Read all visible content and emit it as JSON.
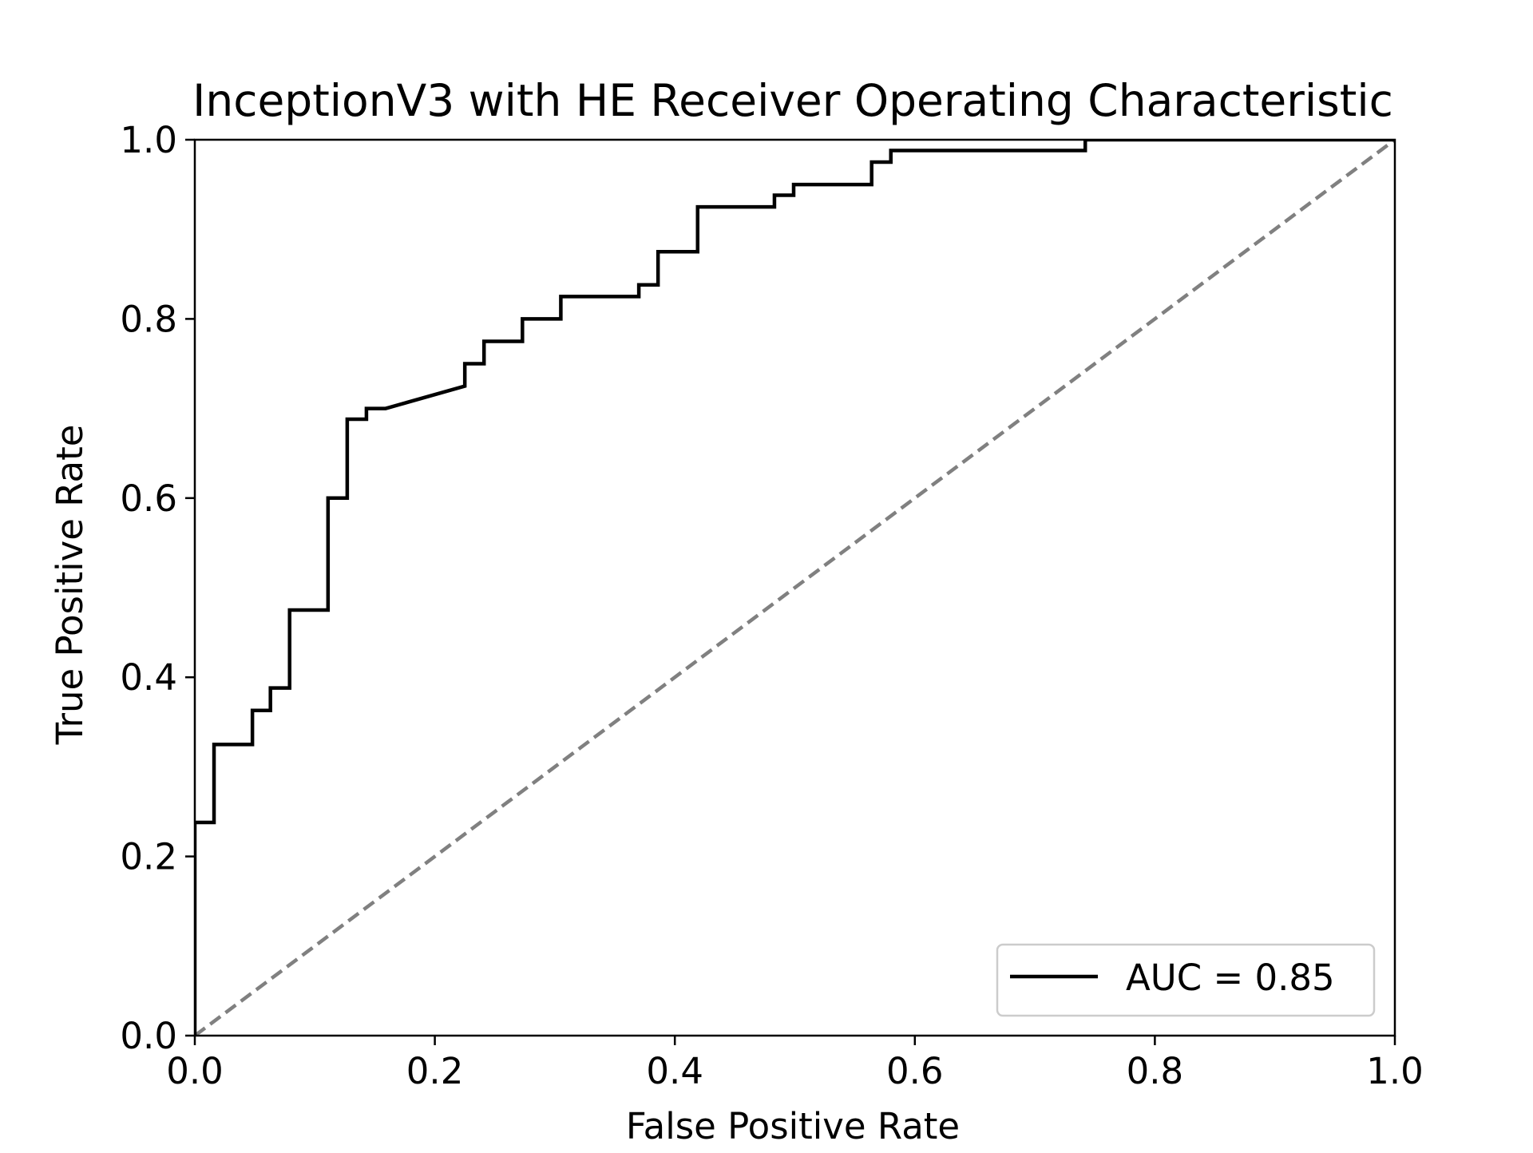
{
  "chart_data": {
    "type": "line",
    "title": "InceptionV3 with HE Receiver Operating Characteristic",
    "xlabel": "False Positive Rate",
    "ylabel": "True Positive Rate",
    "xlim": [
      0.0,
      1.0
    ],
    "ylim": [
      0.0,
      1.0
    ],
    "xticks": [
      "0.0",
      "0.2",
      "0.4",
      "0.6",
      "0.8",
      "1.0"
    ],
    "yticks": [
      "0.0",
      "0.2",
      "0.4",
      "0.6",
      "0.8",
      "1.0"
    ],
    "grid": false,
    "legend": {
      "placement": "lower-right",
      "entries": [
        "AUC = 0.85"
      ]
    },
    "series": [
      {
        "name": "AUC = 0.85",
        "color": "#000000",
        "style": "solid",
        "x": [
          0.0,
          0.0,
          0.016,
          0.016,
          0.048,
          0.048,
          0.063,
          0.063,
          0.079,
          0.079,
          0.111,
          0.111,
          0.127,
          0.127,
          0.143,
          0.143,
          0.159,
          0.225,
          0.225,
          0.241,
          0.241,
          0.273,
          0.273,
          0.305,
          0.305,
          0.37,
          0.37,
          0.386,
          0.386,
          0.419,
          0.419,
          0.483,
          0.483,
          0.499,
          0.499,
          0.564,
          0.564,
          0.58,
          0.58,
          0.742,
          0.742,
          1.0
        ],
        "y": [
          0.0,
          0.238,
          0.238,
          0.325,
          0.325,
          0.363,
          0.363,
          0.388,
          0.388,
          0.475,
          0.475,
          0.6,
          0.6,
          0.688,
          0.688,
          0.7,
          0.7,
          0.725,
          0.75,
          0.75,
          0.775,
          0.775,
          0.8,
          0.8,
          0.825,
          0.825,
          0.838,
          0.838,
          0.875,
          0.875,
          0.925,
          0.925,
          0.938,
          0.938,
          0.95,
          0.95,
          0.975,
          0.975,
          0.988,
          0.988,
          1.0,
          1.0
        ]
      },
      {
        "color": "#808080",
        "style": "dashed",
        "x": [
          0.0,
          1.0
        ],
        "y": [
          0.0,
          1.0
        ]
      }
    ]
  }
}
